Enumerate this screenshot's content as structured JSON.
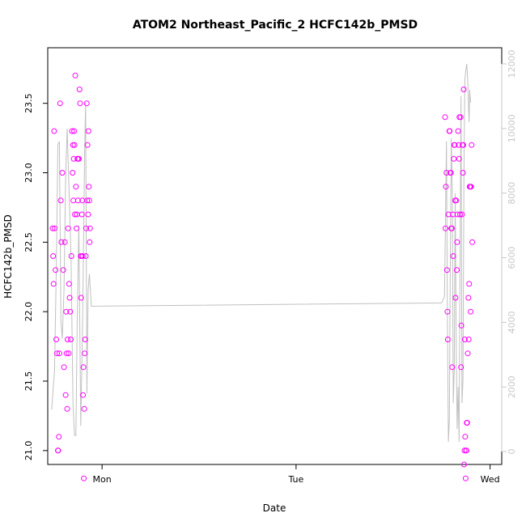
{
  "chart_data": {
    "type": "scatter",
    "title": "ATOM2 Northeast_Pacific_2 HCFC142b_PMSD",
    "xlabel": "Date",
    "ylabel": "HCFC142b_PMSD",
    "xlim": [
      -0.28,
      2.06
    ],
    "ylim": [
      20.9,
      23.9
    ],
    "x_ticks": [
      {
        "value": 0,
        "label": "Mon"
      },
      {
        "value": 1,
        "label": "Tue"
      },
      {
        "value": 2,
        "label": "Wed"
      }
    ],
    "y_ticks": [
      {
        "value": 21.0,
        "label": "21.0"
      },
      {
        "value": 21.5,
        "label": "21.5"
      },
      {
        "value": 22.0,
        "label": "22.0"
      },
      {
        "value": 22.5,
        "label": "22.5"
      },
      {
        "value": 23.0,
        "label": "23.0"
      },
      {
        "value": 23.5,
        "label": "23.5"
      }
    ],
    "y2lim": [
      -400,
      12500
    ],
    "y2_ticks": [
      {
        "value": 0,
        "label": "0"
      },
      {
        "value": 2000,
        "label": "2000"
      },
      {
        "value": 4000,
        "label": "4000"
      },
      {
        "value": 6000,
        "label": "6000"
      },
      {
        "value": 8000,
        "label": "8000"
      },
      {
        "value": 10000,
        "label": "10000"
      },
      {
        "value": 12000,
        "label": "12000"
      }
    ],
    "colors": {
      "points": "#ff00ff",
      "line": "#c0c0c0",
      "right_axis": "#c8c8c8"
    },
    "series": [
      {
        "type": "scatter",
        "axis": "left",
        "points": [
          [
            -0.255,
            22.6
          ],
          [
            -0.252,
            22.4
          ],
          [
            -0.25,
            22.2
          ],
          [
            -0.247,
            23.3
          ],
          [
            -0.244,
            22.6
          ],
          [
            -0.24,
            22.3
          ],
          [
            -0.236,
            21.8
          ],
          [
            -0.232,
            21.7
          ],
          [
            -0.228,
            21.0
          ],
          [
            -0.226,
            21.0
          ],
          [
            -0.223,
            21.1
          ],
          [
            -0.22,
            21.7
          ],
          [
            -0.216,
            23.5
          ],
          [
            -0.213,
            22.8
          ],
          [
            -0.21,
            22.5
          ],
          [
            -0.205,
            23.0
          ],
          [
            -0.2,
            22.3
          ],
          [
            -0.196,
            21.6
          ],
          [
            -0.192,
            22.5
          ],
          [
            -0.188,
            21.4
          ],
          [
            -0.185,
            22.0
          ],
          [
            -0.183,
            21.7
          ],
          [
            -0.18,
            21.3
          ],
          [
            -0.178,
            21.8
          ],
          [
            -0.175,
            22.6
          ],
          [
            -0.172,
            21.7
          ],
          [
            -0.17,
            22.2
          ],
          [
            -0.167,
            22.1
          ],
          [
            -0.164,
            22.0
          ],
          [
            -0.161,
            21.8
          ],
          [
            -0.158,
            22.4
          ],
          [
            -0.155,
            23.3
          ],
          [
            -0.152,
            23.0
          ],
          [
            -0.15,
            23.2
          ],
          [
            -0.148,
            22.8
          ],
          [
            -0.146,
            23.1
          ],
          [
            -0.144,
            23.3
          ],
          [
            -0.142,
            23.2
          ],
          [
            -0.14,
            22.7
          ],
          [
            -0.138,
            23.7
          ],
          [
            -0.135,
            22.9
          ],
          [
            -0.132,
            22.6
          ],
          [
            -0.13,
            22.7
          ],
          [
            -0.127,
            23.1
          ],
          [
            -0.124,
            22.8
          ],
          [
            -0.122,
            23.1
          ],
          [
            -0.119,
            23.1
          ],
          [
            -0.116,
            23.6
          ],
          [
            -0.113,
            23.5
          ],
          [
            -0.11,
            22.4
          ],
          [
            -0.108,
            22.1
          ],
          [
            -0.106,
            22.4
          ],
          [
            -0.104,
            22.7
          ],
          [
            -0.102,
            22.8
          ],
          [
            -0.1,
            22.4
          ],
          [
            -0.098,
            21.4
          ],
          [
            -0.096,
            21.6
          ],
          [
            -0.094,
            20.8
          ],
          [
            -0.092,
            21.3
          ],
          [
            -0.09,
            21.7
          ],
          [
            -0.087,
            21.8
          ],
          [
            -0.084,
            22.4
          ],
          [
            -0.082,
            22.6
          ],
          [
            -0.079,
            23.5
          ],
          [
            -0.077,
            22.8
          ],
          [
            -0.075,
            23.2
          ],
          [
            -0.072,
            22.7
          ],
          [
            -0.07,
            23.3
          ],
          [
            -0.068,
            22.9
          ],
          [
            -0.066,
            22.8
          ],
          [
            -0.064,
            22.5
          ],
          [
            -0.062,
            22.6
          ],
          [
            1.768,
            23.4
          ],
          [
            1.77,
            22.6
          ],
          [
            1.772,
            22.9
          ],
          [
            1.775,
            23.0
          ],
          [
            1.778,
            22.3
          ],
          [
            1.78,
            22.0
          ],
          [
            1.782,
            21.8
          ],
          [
            1.785,
            22.7
          ],
          [
            1.79,
            23.3
          ],
          [
            1.792,
            23.3
          ],
          [
            1.795,
            23.0
          ],
          [
            1.798,
            23.0
          ],
          [
            1.8,
            22.6
          ],
          [
            1.803,
            22.6
          ],
          [
            1.805,
            21.6
          ],
          [
            1.808,
            22.7
          ],
          [
            1.81,
            22.4
          ],
          [
            1.813,
            23.1
          ],
          [
            1.815,
            23.2
          ],
          [
            1.818,
            23.2
          ],
          [
            1.82,
            22.8
          ],
          [
            1.822,
            22.1
          ],
          [
            1.825,
            22.8
          ],
          [
            1.828,
            22.3
          ],
          [
            1.83,
            22.5
          ],
          [
            1.832,
            22.7
          ],
          [
            1.835,
            23.3
          ],
          [
            1.838,
            23.2
          ],
          [
            1.84,
            23.1
          ],
          [
            1.842,
            23.4
          ],
          [
            1.845,
            22.7
          ],
          [
            1.848,
            23.4
          ],
          [
            1.85,
            21.6
          ],
          [
            1.852,
            21.9
          ],
          [
            1.855,
            22.7
          ],
          [
            1.858,
            23.2
          ],
          [
            1.86,
            23.0
          ],
          [
            1.862,
            23.2
          ],
          [
            1.864,
            23.6
          ],
          [
            1.866,
            20.9
          ],
          [
            1.868,
            21.0
          ],
          [
            1.87,
            21.8
          ],
          [
            1.872,
            21.1
          ],
          [
            1.874,
            20.8
          ],
          [
            1.876,
            21.0
          ],
          [
            1.878,
            21.0
          ],
          [
            1.88,
            21.2
          ],
          [
            1.882,
            21.2
          ],
          [
            1.885,
            21.7
          ],
          [
            1.888,
            22.1
          ],
          [
            1.89,
            21.8
          ],
          [
            1.892,
            22.2
          ],
          [
            1.895,
            22.9
          ],
          [
            1.898,
            22.9
          ],
          [
            1.9,
            22.0
          ],
          [
            1.902,
            22.9
          ],
          [
            1.905,
            23.2
          ],
          [
            1.908,
            22.5
          ]
        ]
      },
      {
        "type": "line",
        "axis": "right",
        "points": [
          [
            -0.26,
            1300
          ],
          [
            -0.245,
            2500
          ],
          [
            -0.235,
            6000
          ],
          [
            -0.228,
            9500
          ],
          [
            -0.22,
            9600
          ],
          [
            -0.212,
            4000
          ],
          [
            -0.205,
            3500
          ],
          [
            -0.196,
            5000
          ],
          [
            -0.188,
            8500
          ],
          [
            -0.18,
            10000
          ],
          [
            -0.17,
            8000
          ],
          [
            -0.16,
            6000
          ],
          [
            -0.15,
            1500
          ],
          [
            -0.142,
            500
          ],
          [
            -0.135,
            500
          ],
          [
            -0.128,
            4000
          ],
          [
            -0.12,
            7000
          ],
          [
            -0.11,
            800
          ],
          [
            -0.1,
            4200
          ],
          [
            -0.09,
            9300
          ],
          [
            -0.085,
            10800
          ],
          [
            -0.078,
            1800
          ],
          [
            -0.072,
            5000
          ],
          [
            -0.065,
            5500
          ],
          [
            -0.055,
            4500
          ],
          [
            1.75,
            4600
          ],
          [
            1.765,
            4800
          ],
          [
            1.775,
            9600
          ],
          [
            1.78,
            4000
          ],
          [
            1.785,
            300
          ],
          [
            1.79,
            1000
          ],
          [
            1.795,
            6000
          ],
          [
            1.8,
            9700
          ],
          [
            1.805,
            8000
          ],
          [
            1.81,
            1500
          ],
          [
            1.815,
            2500
          ],
          [
            1.82,
            8000
          ],
          [
            1.825,
            3500
          ],
          [
            1.83,
            700
          ],
          [
            1.835,
            2000
          ],
          [
            1.84,
            300
          ],
          [
            1.845,
            6000
          ],
          [
            1.85,
            11000
          ],
          [
            1.855,
            1500
          ],
          [
            1.86,
            2200
          ],
          [
            1.865,
            8500
          ],
          [
            1.87,
            11500
          ],
          [
            1.875,
            11800
          ],
          [
            1.88,
            12000
          ],
          [
            1.885,
            11500
          ],
          [
            1.888,
            10800
          ],
          [
            1.892,
            10200
          ],
          [
            1.895,
            11200
          ],
          [
            1.9,
            10800
          ]
        ]
      }
    ]
  }
}
